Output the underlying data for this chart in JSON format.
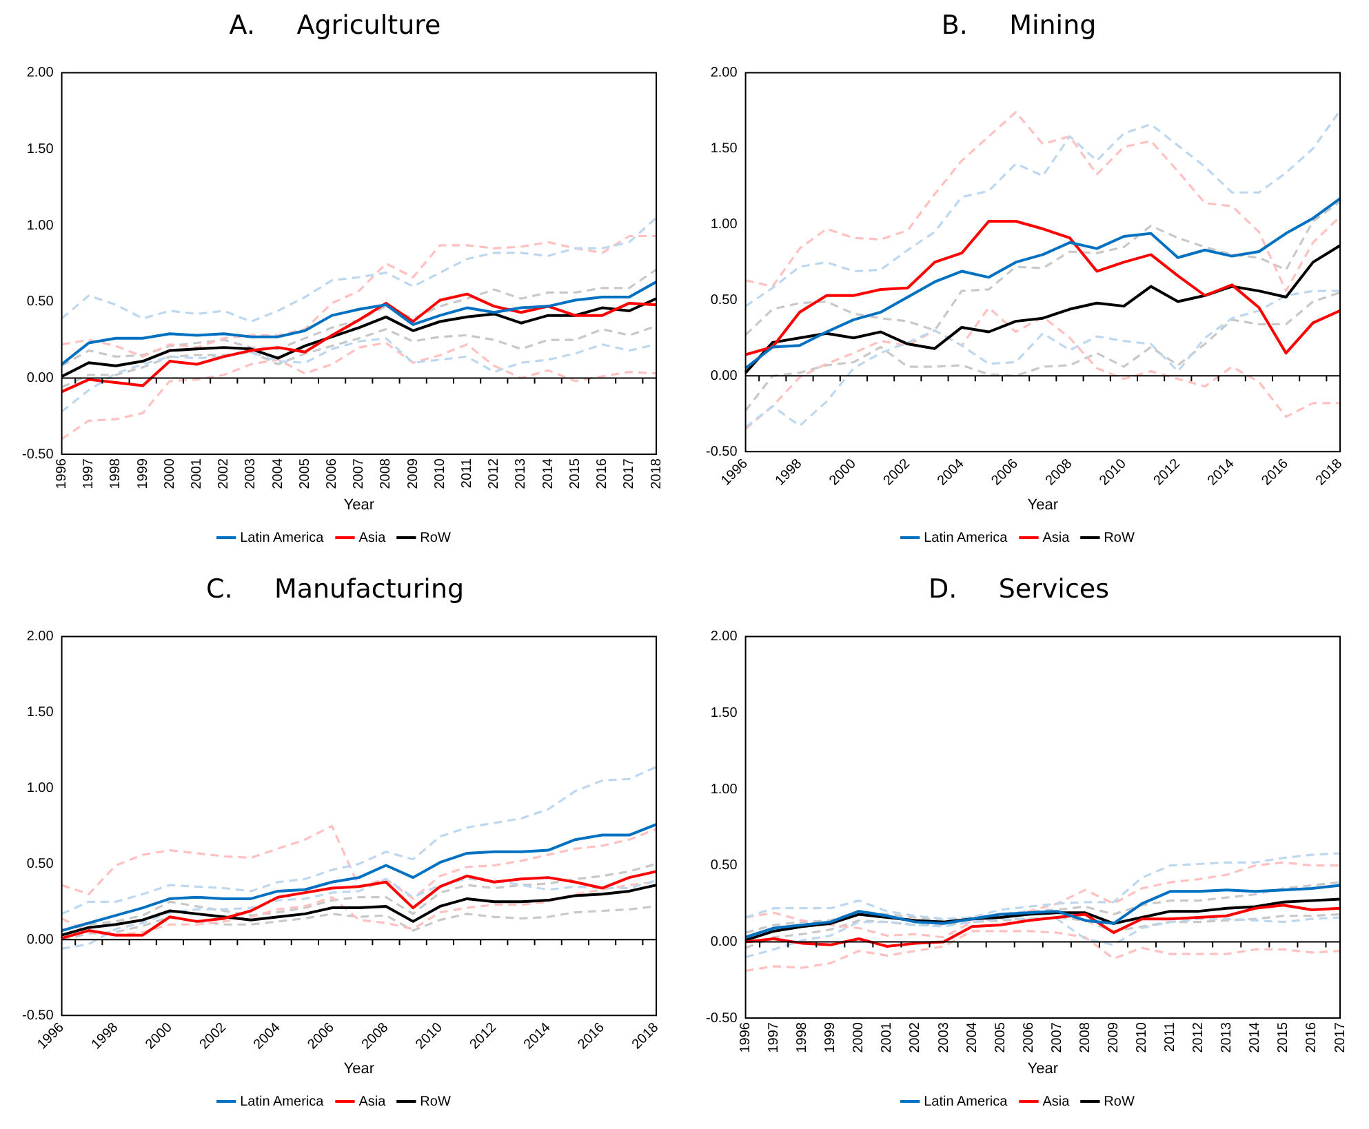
{
  "chart_data": [
    {
      "type": "line",
      "title": "A.     Agriculture",
      "xlabel": "Year",
      "legend": "bottom",
      "grid": false,
      "categories": [
        "1996",
        "1997",
        "1998",
        "1999",
        "2000",
        "2001",
        "2002",
        "2003",
        "2004",
        "2005",
        "2006",
        "2007",
        "2008",
        "2009",
        "2010",
        "2011",
        "2012",
        "2013",
        "2014",
        "2015",
        "2016",
        "2017",
        "2018"
      ],
      "ylim": [
        -0.5,
        2
      ],
      "yticks": [
        {
          "value": -0.5,
          "label": "-0.50"
        },
        {
          "value": 0,
          "label": "0.00"
        },
        {
          "value": 0.5,
          "label": "0.50"
        },
        {
          "value": 1,
          "label": "1.00"
        },
        {
          "value": 1.5,
          "label": "1.50"
        },
        {
          "value": 2,
          "label": "2.00"
        }
      ],
      "ref_lines": [
        {
          "axis": "y",
          "value": 0,
          "color": "#000000"
        }
      ],
      "series": [
        {
          "name": "Latin America",
          "color": "#0070c0",
          "line_style": "solid",
          "values": [
            0.09,
            0.23,
            0.26,
            0.26,
            0.29,
            0.28,
            0.29,
            0.27,
            0.27,
            0.31,
            0.41,
            0.45,
            0.48,
            0.35,
            0.41,
            0.46,
            0.43,
            0.46,
            0.47,
            0.51,
            0.53,
            0.53,
            0.63
          ]
        },
        {
          "name": "Asia",
          "color": "#ff0000",
          "line_style": "solid",
          "values": [
            -0.09,
            -0.01,
            -0.03,
            -0.05,
            0.11,
            0.09,
            0.14,
            0.18,
            0.2,
            0.17,
            0.28,
            0.38,
            0.49,
            0.37,
            0.51,
            0.55,
            0.47,
            0.43,
            0.47,
            0.41,
            0.41,
            0.49,
            0.48
          ]
        },
        {
          "name": "RoW",
          "color": "#000000",
          "line_style": "solid",
          "values": [
            0.01,
            0.1,
            0.08,
            0.11,
            0.18,
            0.19,
            0.2,
            0.19,
            0.13,
            0.21,
            0.27,
            0.33,
            0.4,
            0.31,
            0.37,
            0.4,
            0.42,
            0.36,
            0.41,
            0.41,
            0.46,
            0.44,
            0.52
          ]
        },
        {
          "color": "#bdd7ee",
          "line_style": "dashed",
          "values": [
            0.39,
            0.54,
            0.48,
            0.39,
            0.44,
            0.42,
            0.44,
            0.37,
            0.44,
            0.53,
            0.64,
            0.66,
            0.69,
            0.6,
            0.69,
            0.78,
            0.82,
            0.82,
            0.8,
            0.85,
            0.85,
            0.89,
            1.05
          ]
        },
        {
          "color": "#bdd7ee",
          "line_style": "dashed",
          "values": [
            -0.22,
            -0.08,
            0.03,
            0.09,
            0.14,
            0.13,
            0.14,
            0.17,
            0.11,
            0.1,
            0.19,
            0.24,
            0.26,
            0.1,
            0.12,
            0.14,
            0.04,
            0.1,
            0.12,
            0.16,
            0.22,
            0.18,
            0.22
          ]
        },
        {
          "color": "#ffc0c0",
          "line_style": "dashed",
          "values": [
            0.22,
            0.25,
            0.21,
            0.14,
            0.22,
            0.2,
            0.26,
            0.28,
            0.28,
            0.32,
            0.49,
            0.57,
            0.75,
            0.66,
            0.87,
            0.87,
            0.85,
            0.86,
            0.89,
            0.85,
            0.82,
            0.93,
            0.93
          ]
        },
        {
          "color": "#ffc0c0",
          "line_style": "dashed",
          "values": [
            -0.4,
            -0.28,
            -0.27,
            -0.23,
            -0.02,
            -0.01,
            0.02,
            0.09,
            0.12,
            0.03,
            0.09,
            0.2,
            0.23,
            0.1,
            0.15,
            0.22,
            0.08,
            0.0,
            0.05,
            -0.02,
            0.01,
            0.04,
            0.03
          ]
        },
        {
          "color": "#c8c8c8",
          "line_style": "dashed",
          "values": [
            0.08,
            0.18,
            0.14,
            0.15,
            0.21,
            0.23,
            0.25,
            0.2,
            0.19,
            0.26,
            0.33,
            0.38,
            0.47,
            0.39,
            0.47,
            0.52,
            0.58,
            0.52,
            0.56,
            0.56,
            0.59,
            0.59,
            0.71
          ]
        },
        {
          "color": "#c8c8c8",
          "line_style": "dashed",
          "values": [
            -0.06,
            0.02,
            0.02,
            0.07,
            0.14,
            0.15,
            0.15,
            0.17,
            0.09,
            0.16,
            0.21,
            0.26,
            0.32,
            0.24,
            0.27,
            0.28,
            0.25,
            0.19,
            0.25,
            0.25,
            0.32,
            0.28,
            0.34
          ]
        }
      ]
    },
    {
      "type": "line",
      "title": "B.     Mining",
      "xlabel": "Year",
      "legend": "bottom",
      "grid": false,
      "categories": [
        "1996",
        null,
        "1998",
        null,
        "2000",
        null,
        "2002",
        null,
        "2004",
        null,
        "2006",
        null,
        "2008",
        null,
        "2010",
        null,
        "2012",
        null,
        "2014",
        null,
        "2016",
        null,
        "2018"
      ],
      "ylim": [
        -0.5,
        2
      ],
      "yticks": [
        {
          "value": -0.5,
          "label": "-0.50"
        },
        {
          "value": 0,
          "label": "0.00"
        },
        {
          "value": 0.5,
          "label": "0.50"
        },
        {
          "value": 1,
          "label": "1.00"
        },
        {
          "value": 1.5,
          "label": "1.50"
        },
        {
          "value": 2,
          "label": "2.00"
        }
      ],
      "ref_lines": [
        {
          "axis": "y",
          "value": 0,
          "color": "#000000"
        }
      ],
      "series": [
        {
          "name": "Latin America",
          "color": "#0070c0",
          "line_style": "solid",
          "values": [
            0.05,
            0.19,
            0.2,
            0.29,
            0.37,
            0.42,
            0.52,
            0.62,
            0.69,
            0.65,
            0.75,
            0.8,
            0.88,
            0.84,
            0.92,
            0.94,
            0.78,
            0.83,
            0.79,
            0.82,
            0.94,
            1.04,
            1.17
          ]
        },
        {
          "name": "Asia",
          "color": "#ff0000",
          "line_style": "solid",
          "values": [
            0.14,
            0.19,
            0.42,
            0.53,
            0.53,
            0.57,
            0.58,
            0.75,
            0.81,
            1.02,
            1.02,
            0.97,
            0.91,
            0.69,
            0.75,
            0.8,
            0.66,
            0.53,
            0.6,
            0.45,
            0.15,
            0.35,
            0.43
          ]
        },
        {
          "name": "RoW",
          "color": "#000000",
          "line_style": "solid",
          "values": [
            0.02,
            0.22,
            0.25,
            0.28,
            0.25,
            0.29,
            0.21,
            0.18,
            0.32,
            0.29,
            0.36,
            0.38,
            0.44,
            0.48,
            0.46,
            0.59,
            0.49,
            0.53,
            0.59,
            0.56,
            0.52,
            0.75,
            0.86
          ]
        },
        {
          "color": "#bdd7ee",
          "line_style": "dashed",
          "values": [
            0.46,
            0.58,
            0.72,
            0.75,
            0.69,
            0.7,
            0.83,
            0.95,
            1.18,
            1.22,
            1.4,
            1.32,
            1.58,
            1.42,
            1.6,
            1.66,
            1.52,
            1.38,
            1.21,
            1.21,
            1.34,
            1.5,
            1.75
          ]
        },
        {
          "color": "#bdd7ee",
          "line_style": "dashed",
          "values": [
            -0.34,
            -0.2,
            -0.33,
            -0.17,
            0.05,
            0.15,
            0.22,
            0.3,
            0.2,
            0.08,
            0.09,
            0.28,
            0.17,
            0.26,
            0.23,
            0.21,
            0.03,
            0.25,
            0.38,
            0.43,
            0.53,
            0.56,
            0.56
          ]
        },
        {
          "color": "#ffc0c0",
          "line_style": "dashed",
          "values": [
            0.63,
            0.59,
            0.84,
            0.97,
            0.91,
            0.9,
            0.96,
            1.2,
            1.42,
            1.58,
            1.74,
            1.53,
            1.58,
            1.33,
            1.51,
            1.55,
            1.35,
            1.14,
            1.12,
            0.95,
            0.56,
            0.88,
            1.05
          ]
        },
        {
          "color": "#ffc0c0",
          "line_style": "dashed",
          "values": [
            -0.35,
            -0.2,
            -0.01,
            0.08,
            0.15,
            0.23,
            0.2,
            0.3,
            0.2,
            0.45,
            0.29,
            0.39,
            0.25,
            0.05,
            -0.02,
            0.03,
            -0.02,
            -0.07,
            0.06,
            -0.04,
            -0.27,
            -0.18,
            -0.18
          ]
        },
        {
          "color": "#c8c8c8",
          "line_style": "dashed",
          "values": [
            0.27,
            0.44,
            0.48,
            0.49,
            0.41,
            0.38,
            0.36,
            0.3,
            0.56,
            0.57,
            0.72,
            0.71,
            0.82,
            0.81,
            0.85,
            0.99,
            0.91,
            0.85,
            0.8,
            0.78,
            0.7,
            1.02,
            1.15
          ]
        },
        {
          "color": "#c8c8c8",
          "line_style": "dashed",
          "values": [
            -0.23,
            0.0,
            0.02,
            0.07,
            0.09,
            0.19,
            0.06,
            0.06,
            0.07,
            0.01,
            0.0,
            0.06,
            0.07,
            0.15,
            0.06,
            0.19,
            0.07,
            0.21,
            0.37,
            0.34,
            0.34,
            0.49,
            0.55
          ]
        }
      ]
    },
    {
      "type": "line",
      "title": "C.     Manufacturing",
      "xlabel": "Year",
      "legend": "bottom",
      "grid": false,
      "categories": [
        "1996",
        null,
        "1998",
        null,
        "2000",
        null,
        "2002",
        null,
        "2004",
        null,
        "2006",
        null,
        "2008",
        null,
        "2010",
        null,
        "2012",
        null,
        "2014",
        null,
        "2016",
        null,
        "2018"
      ],
      "ylim": [
        -0.5,
        2
      ],
      "yticks": [
        {
          "value": -0.5,
          "label": "-0.50"
        },
        {
          "value": 0,
          "label": "0.00"
        },
        {
          "value": 0.5,
          "label": "0.50"
        },
        {
          "value": 1,
          "label": "1.00"
        },
        {
          "value": 1.5,
          "label": "1.50"
        },
        {
          "value": 2,
          "label": "2.00"
        }
      ],
      "ref_lines": [
        {
          "axis": "y",
          "value": 0,
          "color": "#000000"
        }
      ],
      "series": [
        {
          "name": "Latin America",
          "color": "#0070c0",
          "line_style": "solid",
          "values": [
            0.06,
            0.11,
            0.16,
            0.21,
            0.27,
            0.28,
            0.27,
            0.27,
            0.32,
            0.33,
            0.38,
            0.41,
            0.49,
            0.41,
            0.51,
            0.57,
            0.58,
            0.58,
            0.59,
            0.66,
            0.69,
            0.69,
            0.76
          ]
        },
        {
          "name": "Asia",
          "color": "#ff0000",
          "line_style": "solid",
          "values": [
            0.01,
            0.06,
            0.03,
            0.03,
            0.15,
            0.12,
            0.14,
            0.19,
            0.28,
            0.31,
            0.34,
            0.35,
            0.38,
            0.21,
            0.35,
            0.42,
            0.38,
            0.4,
            0.41,
            0.38,
            0.34,
            0.41,
            0.45
          ]
        },
        {
          "name": "RoW",
          "color": "#000000",
          "line_style": "solid",
          "values": [
            0.03,
            0.08,
            0.1,
            0.13,
            0.19,
            0.17,
            0.15,
            0.13,
            0.15,
            0.17,
            0.21,
            0.21,
            0.22,
            0.12,
            0.22,
            0.27,
            0.25,
            0.25,
            0.26,
            0.29,
            0.3,
            0.32,
            0.36
          ]
        },
        {
          "color": "#bdd7ee",
          "line_style": "dashed",
          "values": [
            0.17,
            0.25,
            0.25,
            0.3,
            0.36,
            0.35,
            0.34,
            0.32,
            0.38,
            0.4,
            0.46,
            0.5,
            0.58,
            0.53,
            0.68,
            0.74,
            0.77,
            0.8,
            0.86,
            0.98,
            1.05,
            1.06,
            1.14
          ]
        },
        {
          "color": "#bdd7ee",
          "line_style": "dashed",
          "values": [
            -0.06,
            -0.03,
            0.07,
            0.11,
            0.18,
            0.2,
            0.2,
            0.21,
            0.26,
            0.27,
            0.31,
            0.32,
            0.4,
            0.28,
            0.36,
            0.4,
            0.39,
            0.36,
            0.33,
            0.35,
            0.34,
            0.34,
            0.39
          ]
        },
        {
          "color": "#ffc0c0",
          "line_style": "dashed",
          "values": [
            0.36,
            0.3,
            0.49,
            0.56,
            0.59,
            0.57,
            0.55,
            0.54,
            0.6,
            0.66,
            0.75,
            0.35,
            0.4,
            0.27,
            0.42,
            0.48,
            0.49,
            0.52,
            0.56,
            0.6,
            0.62,
            0.66,
            0.73
          ]
        },
        {
          "color": "#ffc0c0",
          "line_style": "dashed",
          "values": [
            0.14,
            0.05,
            0.03,
            0.05,
            0.1,
            0.1,
            0.12,
            0.15,
            0.2,
            0.22,
            0.28,
            0.13,
            0.11,
            0.07,
            0.18,
            0.21,
            0.23,
            0.23,
            0.25,
            0.3,
            0.33,
            0.36,
            0.38
          ]
        },
        {
          "color": "#c8c8c8",
          "line_style": "dashed",
          "values": [
            0.06,
            0.1,
            0.12,
            0.16,
            0.25,
            0.22,
            0.19,
            0.16,
            0.18,
            0.21,
            0.26,
            0.28,
            0.28,
            0.17,
            0.31,
            0.36,
            0.34,
            0.36,
            0.37,
            0.4,
            0.42,
            0.45,
            0.5
          ]
        },
        {
          "color": "#c8c8c8",
          "line_style": "dashed",
          "values": [
            0.0,
            0.04,
            0.05,
            0.09,
            0.15,
            0.12,
            0.1,
            0.1,
            0.12,
            0.14,
            0.17,
            0.15,
            0.16,
            0.06,
            0.13,
            0.17,
            0.15,
            0.14,
            0.15,
            0.18,
            0.19,
            0.2,
            0.22
          ]
        }
      ]
    },
    {
      "type": "line",
      "title": "D.     Services",
      "xlabel": "Year",
      "legend": "bottom",
      "grid": false,
      "categories": [
        "1996",
        "1997",
        "1998",
        "1999",
        "2000",
        "2001",
        "2002",
        "2003",
        "2004",
        "2005",
        "2006",
        "2007",
        "2008",
        "2009",
        "2010",
        "2011",
        "2012",
        "2013",
        "2014",
        "2015",
        "2016",
        "2017"
      ],
      "ylim": [
        -0.5,
        2
      ],
      "yticks": [
        {
          "value": -0.5,
          "label": "-0.50"
        },
        {
          "value": 0,
          "label": "0.00"
        },
        {
          "value": 0.5,
          "label": "0.50"
        },
        {
          "value": 1,
          "label": "1.00"
        },
        {
          "value": 1.5,
          "label": "1.50"
        },
        {
          "value": 2,
          "label": "2.00"
        }
      ],
      "ref_lines": [
        {
          "axis": "y",
          "value": 0,
          "color": "#000000"
        }
      ],
      "series": [
        {
          "name": "Latin America",
          "color": "#0070c0",
          "line_style": "solid",
          "values": [
            0.03,
            0.09,
            0.11,
            0.13,
            0.2,
            0.17,
            0.13,
            0.12,
            0.15,
            0.18,
            0.19,
            0.2,
            0.14,
            0.12,
            0.25,
            0.33,
            0.33,
            0.34,
            0.33,
            0.34,
            0.35,
            0.37
          ]
        },
        {
          "name": "Asia",
          "color": "#ff0000",
          "line_style": "solid",
          "values": [
            0.0,
            0.02,
            -0.01,
            -0.02,
            0.02,
            -0.03,
            -0.01,
            0.0,
            0.1,
            0.11,
            0.14,
            0.16,
            0.18,
            0.06,
            0.15,
            0.15,
            0.16,
            0.17,
            0.22,
            0.24,
            0.21,
            0.22
          ]
        },
        {
          "name": "RoW",
          "color": "#000000",
          "line_style": "solid",
          "values": [
            0.01,
            0.07,
            0.1,
            0.12,
            0.18,
            0.16,
            0.14,
            0.13,
            0.15,
            0.16,
            0.18,
            0.19,
            0.19,
            0.12,
            0.16,
            0.2,
            0.2,
            0.22,
            0.23,
            0.26,
            0.27,
            0.28
          ]
        },
        {
          "color": "#bdd7ee",
          "line_style": "dashed",
          "values": [
            0.16,
            0.22,
            0.22,
            0.22,
            0.27,
            0.2,
            0.17,
            0.15,
            0.16,
            0.21,
            0.23,
            0.25,
            0.26,
            0.26,
            0.42,
            0.5,
            0.51,
            0.52,
            0.52,
            0.55,
            0.57,
            0.58
          ]
        },
        {
          "color": "#bdd7ee",
          "line_style": "dashed",
          "values": [
            -0.1,
            -0.05,
            0.01,
            0.04,
            0.13,
            0.13,
            0.11,
            0.1,
            0.13,
            0.15,
            0.15,
            0.15,
            0.02,
            -0.02,
            0.09,
            0.13,
            0.15,
            0.15,
            0.14,
            0.13,
            0.15,
            0.16
          ]
        },
        {
          "color": "#ffc0c0",
          "line_style": "dashed",
          "values": [
            0.16,
            0.19,
            0.14,
            0.11,
            0.09,
            0.04,
            0.05,
            0.03,
            0.13,
            0.16,
            0.2,
            0.25,
            0.34,
            0.25,
            0.35,
            0.39,
            0.41,
            0.44,
            0.5,
            0.52,
            0.5,
            0.5
          ]
        },
        {
          "color": "#ffc0c0",
          "line_style": "dashed",
          "values": [
            -0.19,
            -0.16,
            -0.17,
            -0.14,
            -0.06,
            -0.09,
            -0.06,
            -0.03,
            0.07,
            0.07,
            0.07,
            0.06,
            0.03,
            -0.11,
            -0.04,
            -0.08,
            -0.08,
            -0.08,
            -0.05,
            -0.05,
            -0.07,
            -0.06
          ]
        },
        {
          "color": "#c8c8c8",
          "line_style": "dashed",
          "values": [
            0.06,
            0.11,
            0.13,
            0.14,
            0.2,
            0.18,
            0.16,
            0.14,
            0.16,
            0.18,
            0.2,
            0.21,
            0.23,
            0.18,
            0.24,
            0.27,
            0.27,
            0.29,
            0.31,
            0.35,
            0.37,
            0.39
          ]
        },
        {
          "color": "#c8c8c8",
          "line_style": "dashed",
          "values": [
            -0.04,
            0.03,
            0.05,
            0.08,
            0.14,
            0.13,
            0.11,
            0.11,
            0.13,
            0.14,
            0.15,
            0.16,
            0.14,
            0.07,
            0.1,
            0.13,
            0.13,
            0.14,
            0.15,
            0.17,
            0.17,
            0.18
          ]
        }
      ]
    }
  ]
}
